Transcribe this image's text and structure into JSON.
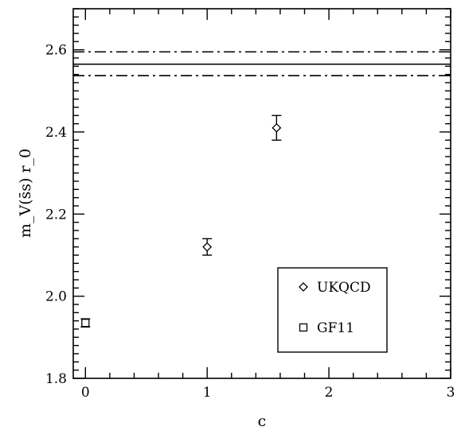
{
  "chart_data": {
    "type": "scatter",
    "xlabel": "c",
    "ylabel": "m_V(s̄s) r_0",
    "xlim": [
      -0.1,
      3.0
    ],
    "ylim": [
      1.8,
      2.7
    ],
    "xticks": [
      0,
      1,
      2,
      3
    ],
    "yticks": [
      1.8,
      2.0,
      2.2,
      2.4,
      2.6
    ],
    "xtick_labels": [
      "0",
      "1",
      "2",
      "3"
    ],
    "ytick_labels": [
      "1.8",
      "2.0",
      "2.2",
      "2.4",
      "2.6"
    ],
    "series": [
      {
        "name": "UKQCD",
        "marker": "diamond",
        "points": [
          {
            "x": 1.0,
            "y": 2.12,
            "err": 0.02
          },
          {
            "x": 1.57,
            "y": 2.41,
            "err": 0.03
          }
        ]
      },
      {
        "name": "GF11",
        "marker": "square",
        "points": [
          {
            "x": 0.0,
            "y": 1.935,
            "err": 0.01
          }
        ]
      }
    ],
    "reference_lines": [
      {
        "y": 2.565,
        "style": "solid"
      },
      {
        "y": 2.595,
        "style": "dashdot"
      },
      {
        "y": 2.537,
        "style": "dashdot"
      }
    ],
    "legend": {
      "position": "bottom-right",
      "entries": [
        "UKQCD",
        "GF11"
      ]
    },
    "grid": false
  }
}
